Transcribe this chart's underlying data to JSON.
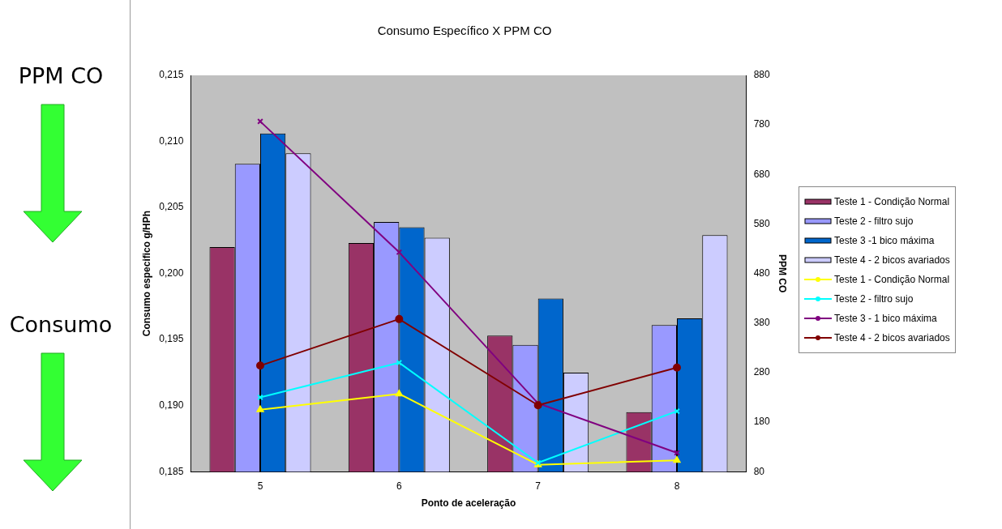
{
  "chart_data": {
    "type": "bar",
    "title": "Consumo Específico X PPM CO",
    "xlabel": "Ponto de aceleração",
    "ylabel": "Consumo especifico g/HPh",
    "y2label": "PPM CO",
    "annotations": [
      "PPM CO",
      "Consumo"
    ],
    "categories": [
      "5",
      "6",
      "7",
      "8"
    ],
    "series": [
      {
        "name": "Teste 1 - Condição Normal",
        "color": "#993366",
        "values": [
          0.202,
          0.2023,
          0.1953,
          0.1895
        ]
      },
      {
        "name": "Teste 2 - filtro sujo",
        "color": "#9999ff",
        "values": [
          0.2083,
          0.2039,
          0.1946,
          0.1961
        ]
      },
      {
        "name": "Teste 3 -1 bico  máxima",
        "color": "#0066cc",
        "values": [
          0.2106,
          0.2035,
          0.1981,
          0.1966
        ]
      },
      {
        "name": "Teste 4 - 2 bicos avariados",
        "color": "#ccccff",
        "values": [
          0.2091,
          0.2027,
          0.1925,
          0.2029
        ]
      },
      {
        "name": "Teste 1 - Condição Normal",
        "type": "line",
        "axis": "y2",
        "marker": "triangle",
        "color": "#ffff00",
        "values": [
          205,
          237,
          94,
          103
        ]
      },
      {
        "name": "Teste 2 - filtro sujo",
        "type": "line",
        "axis": "y2",
        "marker": "cross",
        "color": "#00ffff",
        "values": [
          230,
          300,
          98,
          202
        ]
      },
      {
        "name": "Teste 3 - 1 bico máxima",
        "type": "line",
        "axis": "y2",
        "marker": "cross",
        "color": "#800080",
        "values": [
          787,
          523,
          218,
          118
        ]
      },
      {
        "name": "Teste 4 - 2 bicos avariados",
        "type": "line",
        "axis": "y2",
        "marker": "circle",
        "color": "#800000",
        "values": [
          294,
          388,
          214,
          290
        ]
      }
    ],
    "ylim": [
      0.185,
      0.215
    ],
    "yticks": [
      {
        "value": 0.185,
        "label": "0,185"
      },
      {
        "value": 0.19,
        "label": "0,190"
      },
      {
        "value": 0.195,
        "label": "0,195"
      },
      {
        "value": 0.2,
        "label": "0,200"
      },
      {
        "value": 0.205,
        "label": "0,205"
      },
      {
        "value": 0.21,
        "label": "0,210"
      },
      {
        "value": 0.215,
        "label": "0,215"
      }
    ],
    "y2lim": [
      80,
      880
    ],
    "y2ticks": [
      80,
      180,
      280,
      380,
      480,
      580,
      680,
      780,
      880
    ],
    "grid": false,
    "legend": "right"
  }
}
